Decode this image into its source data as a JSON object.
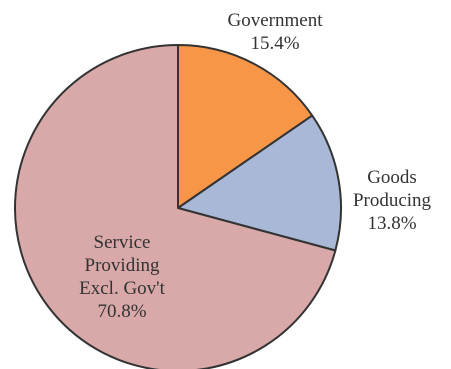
{
  "chart_data": {
    "type": "pie",
    "title": "",
    "slices": [
      {
        "name": "Government",
        "value": 15.4,
        "value_label": "15.4%",
        "label_lines": [
          "Government",
          "15.4%"
        ],
        "color": "#F79646"
      },
      {
        "name": "Goods Producing",
        "value": 13.8,
        "value_label": "13.8%",
        "label_lines": [
          "Goods",
          "Producing",
          "13.8%"
        ],
        "color": "#A9B8D6"
      },
      {
        "name": "Service Providing Excl. Gov't",
        "value": 70.8,
        "value_label": "70.8%",
        "label_lines": [
          "Service",
          "Providing",
          "Excl. Gov't",
          "70.8%"
        ],
        "color": "#D9A9A9"
      }
    ],
    "start_angle_deg": 0,
    "direction": "clockwise",
    "legend": "none",
    "border_color": "#333333"
  }
}
